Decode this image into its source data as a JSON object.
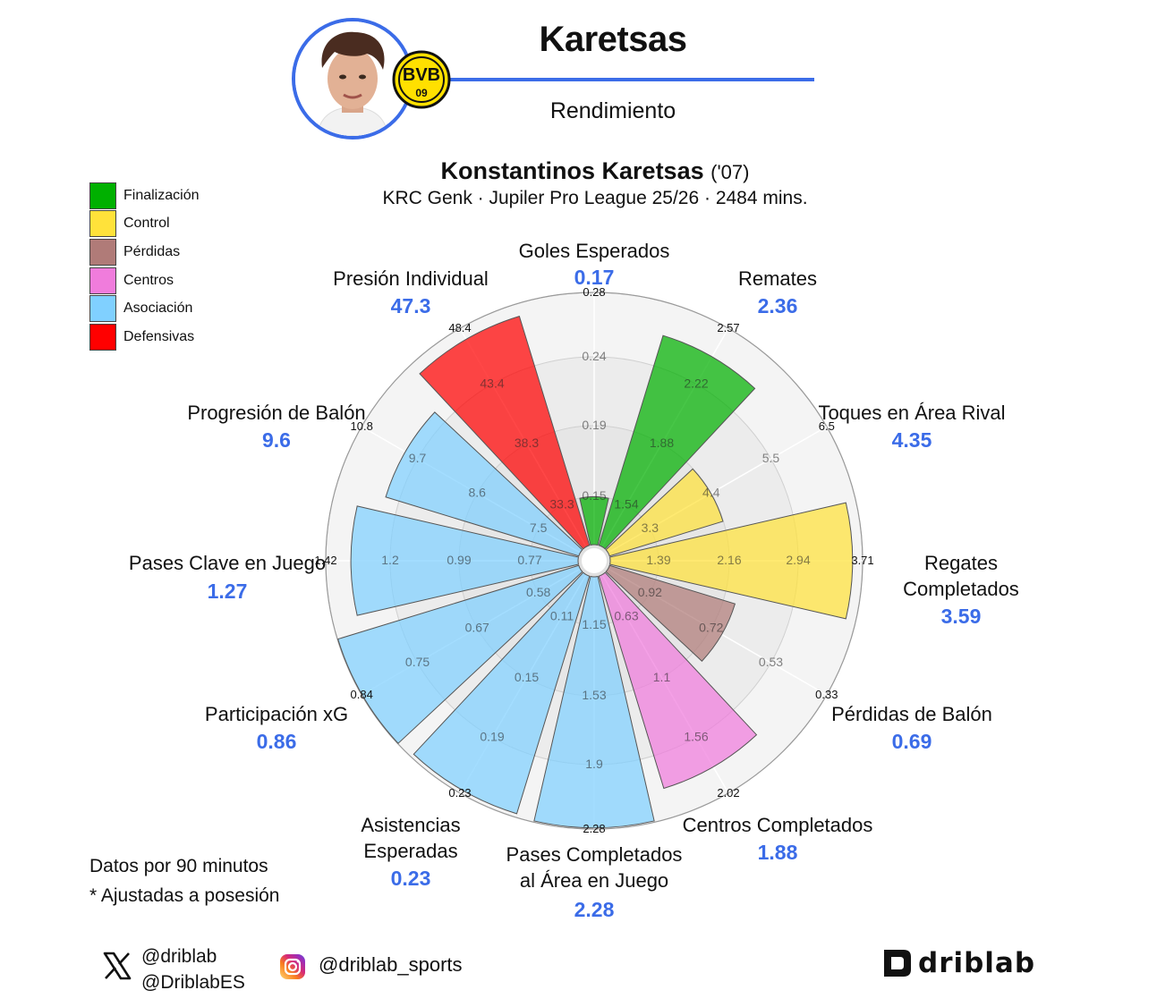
{
  "header": {
    "title": "Karetsas",
    "subtitle": "Rendimiento",
    "player_name": "Konstantinos Karetsas",
    "player_born": "('07)",
    "meta": "KRC Genk · Jupiler Pro League 25/26 · 2484 mins.",
    "club_badge_text": "BVB 09",
    "accent_color": "#3b6ce8"
  },
  "legend": [
    {
      "label": "Finalización",
      "color": "#00b000"
    },
    {
      "label": "Control",
      "color": "#ffe23a"
    },
    {
      "label": "Pérdidas",
      "color": "#b07b78"
    },
    {
      "label": "Centros",
      "color": "#f07cdc"
    },
    {
      "label": "Asociación",
      "color": "#80d0ff"
    },
    {
      "label": "Defensivas",
      "color": "#ff0000"
    }
  ],
  "chart_data": {
    "type": "polar_bar",
    "value_color": "#3b6ce8",
    "categories": [
      {
        "name": "Goles Esperados",
        "value": "0.17",
        "group": "Finalización",
        "fill": 0.19,
        "ticks": [
          "0.15",
          "0.19",
          "0.24",
          "0.28"
        ]
      },
      {
        "name": "Remates",
        "value": "2.36",
        "group": "Finalización",
        "fill": 0.87,
        "ticks": [
          "1.54",
          "1.88",
          "2.22",
          "2.57"
        ]
      },
      {
        "name": "Toques en Área Rival",
        "value": "4.35",
        "group": "Control",
        "fill": 0.47,
        "ticks": [
          "3.3",
          "4.4",
          "5.5",
          "6.5"
        ]
      },
      {
        "name": "Regates Completados",
        "value": "3.59",
        "group": "Control",
        "fill": 0.96,
        "ticks": [
          "1.39",
          "2.16",
          "2.94",
          "3.71"
        ]
      },
      {
        "name": "Pérdidas de Balón",
        "value": "0.69",
        "group": "Pérdidas",
        "fill": 0.52,
        "ticks": [
          "0.92",
          "0.72",
          "0.53",
          "0.33"
        ]
      },
      {
        "name": "Centros Completados",
        "value": "1.88",
        "group": "Centros",
        "fill": 0.88,
        "ticks": [
          "0.63",
          "1.1",
          "1.56",
          "2.02"
        ]
      },
      {
        "name": "Pases Completados al Área en Juego",
        "value": "2.28",
        "group": "Asociación",
        "fill": 0.995,
        "ticks": [
          "1.15",
          "1.53",
          "1.9",
          "2.28"
        ]
      },
      {
        "name": "Asistencias Esperadas",
        "value": "0.23",
        "group": "Asociación",
        "fill": 0.985,
        "ticks": [
          "0.11",
          "0.15",
          "0.19",
          "0.23"
        ]
      },
      {
        "name": "Participación xG",
        "value": "0.86",
        "group": "Asociación",
        "fill": 0.998,
        "ticks": [
          "0.58",
          "0.67",
          "0.75",
          "0.84"
        ]
      },
      {
        "name": "Pases Clave en Juego",
        "value": "1.27",
        "group": "Asociación",
        "fill": 0.9,
        "ticks": [
          "0.77",
          "0.99",
          "1.2",
          "1.42"
        ]
      },
      {
        "name": "Progresión de Balón",
        "value": "9.6",
        "group": "Asociación",
        "fill": 0.8,
        "ticks": [
          "7.5",
          "8.6",
          "9.7",
          "10.8"
        ]
      },
      {
        "name": "Presión Individual",
        "value": "47.3",
        "group": "Defensivas",
        "fill": 0.95,
        "ticks": [
          "33.3",
          "38.3",
          "43.4",
          "48.4"
        ]
      }
    ]
  },
  "footer": {
    "note1": "Datos por 90 minutos",
    "note2": "* Ajustadas a posesión",
    "x_handle1": "@driblab",
    "x_handle2": "@DriblabES",
    "ig_handle": "@driblab_sports",
    "brand": "driblab"
  }
}
